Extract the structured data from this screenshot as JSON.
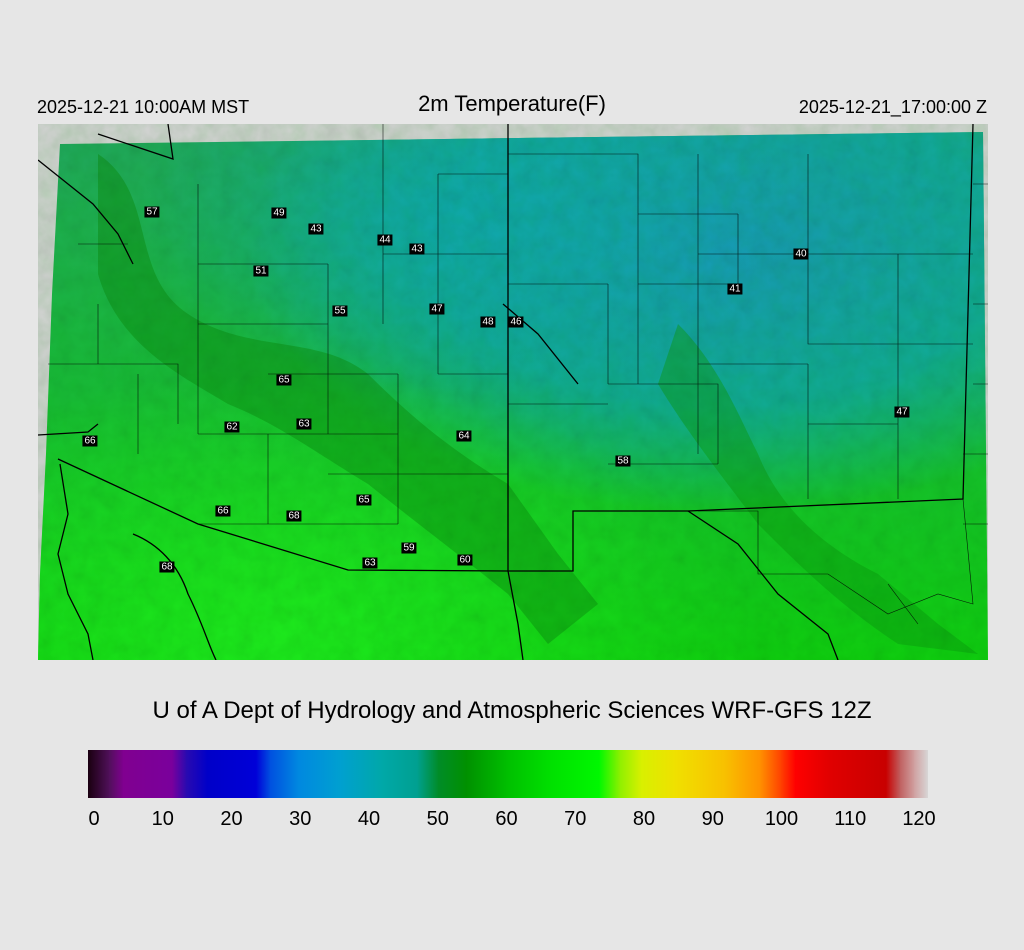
{
  "header": {
    "local_time": "2025-12-21 10:00AM MST",
    "title": "2m Temperature(F)",
    "valid_time": "2025-12-21_17:00:00 Z"
  },
  "credit": "U of A Dept of Hydrology and Atmospheric Sciences WRF-GFS 12Z",
  "colorbar": {
    "min": 0,
    "max": 120,
    "ticks": [
      "0",
      "10",
      "20",
      "30",
      "40",
      "50",
      "60",
      "70",
      "80",
      "90",
      "100",
      "110",
      "120"
    ],
    "stops": [
      {
        "v": 0,
        "c": "#1a0010"
      },
      {
        "v": 3,
        "c": "#50105a"
      },
      {
        "v": 5,
        "c": "#800090"
      },
      {
        "v": 12,
        "c": "#7a009c"
      },
      {
        "v": 14,
        "c": "#2a0ab0"
      },
      {
        "v": 17,
        "c": "#0000c8"
      },
      {
        "v": 24,
        "c": "#0000d8"
      },
      {
        "v": 26,
        "c": "#0050e0"
      },
      {
        "v": 30,
        "c": "#0088e0"
      },
      {
        "v": 36,
        "c": "#00a0d0"
      },
      {
        "v": 42,
        "c": "#00a8a8"
      },
      {
        "v": 47,
        "c": "#00a090"
      },
      {
        "v": 50,
        "c": "#008c28"
      },
      {
        "v": 54,
        "c": "#009000"
      },
      {
        "v": 60,
        "c": "#00c000"
      },
      {
        "v": 66,
        "c": "#00e000"
      },
      {
        "v": 73,
        "c": "#00f800"
      },
      {
        "v": 76,
        "c": "#90f000"
      },
      {
        "v": 79,
        "c": "#d8f000"
      },
      {
        "v": 84,
        "c": "#f0e000"
      },
      {
        "v": 91,
        "c": "#f8c000"
      },
      {
        "v": 96,
        "c": "#ff9000"
      },
      {
        "v": 99,
        "c": "#ff4000"
      },
      {
        "v": 101,
        "c": "#ff0000"
      },
      {
        "v": 106,
        "c": "#e00000"
      },
      {
        "v": 114,
        "c": "#c80000"
      },
      {
        "v": 116,
        "c": "#c06060"
      },
      {
        "v": 118,
        "c": "#d0a0a0"
      },
      {
        "v": 120,
        "c": "#d8d8d8"
      }
    ]
  },
  "stations": [
    {
      "label": "57"
    },
    {
      "label": "49"
    },
    {
      "label": "43"
    },
    {
      "label": "44"
    },
    {
      "label": "43"
    },
    {
      "label": "51"
    },
    {
      "label": "55"
    },
    {
      "label": "47"
    },
    {
      "label": "48"
    },
    {
      "label": "46"
    },
    {
      "label": "40"
    },
    {
      "label": "41"
    },
    {
      "label": "65"
    },
    {
      "label": "62"
    },
    {
      "label": "63"
    },
    {
      "label": "64"
    },
    {
      "label": "66"
    },
    {
      "label": "58"
    },
    {
      "label": "47"
    },
    {
      "label": "66"
    },
    {
      "label": "68"
    },
    {
      "label": "65"
    },
    {
      "label": "59"
    },
    {
      "label": "63"
    },
    {
      "label": "60"
    },
    {
      "label": "68"
    }
  ]
}
